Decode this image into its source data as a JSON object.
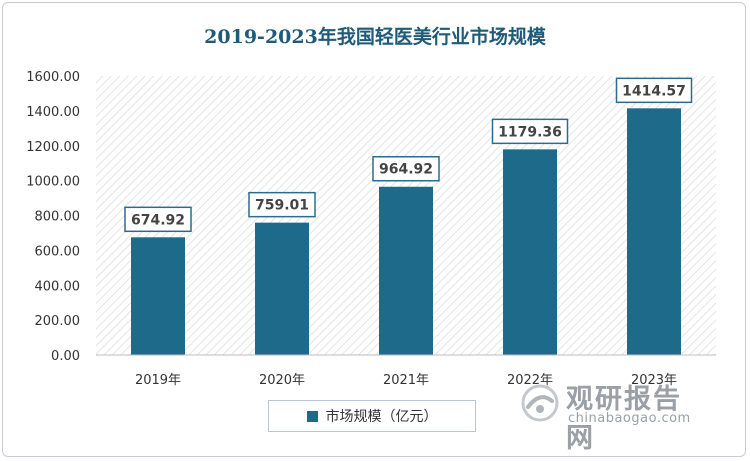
{
  "chart_data": {
    "type": "bar",
    "title": "2019-2023年我国轻医美行业市场规模",
    "categories": [
      "2019年",
      "2020年",
      "2021年",
      "2022年",
      "2023年"
    ],
    "series": [
      {
        "name": "市场规模（亿元）",
        "values": [
          674.92,
          759.01,
          964.92,
          1179.36,
          1414.57
        ]
      }
    ],
    "value_labels": [
      "674.92",
      "759.01",
      "964.92",
      "1179.36",
      "1414.57"
    ],
    "ylim": [
      0,
      1600
    ],
    "yticks": [
      "0.00",
      "200.00",
      "400.00",
      "600.00",
      "800.00",
      "1000.00",
      "1200.00",
      "1400.00",
      "1600.00"
    ],
    "grid": false,
    "plot_background": "diagonal-hatch",
    "legend_position": "bottom",
    "colors": {
      "bar": "#1d6a8b",
      "title": "#1f5a78",
      "label_border": "#2b6c8e"
    }
  },
  "watermark": {
    "cn": "观研报告网",
    "en": "chinabaogao.com"
  }
}
